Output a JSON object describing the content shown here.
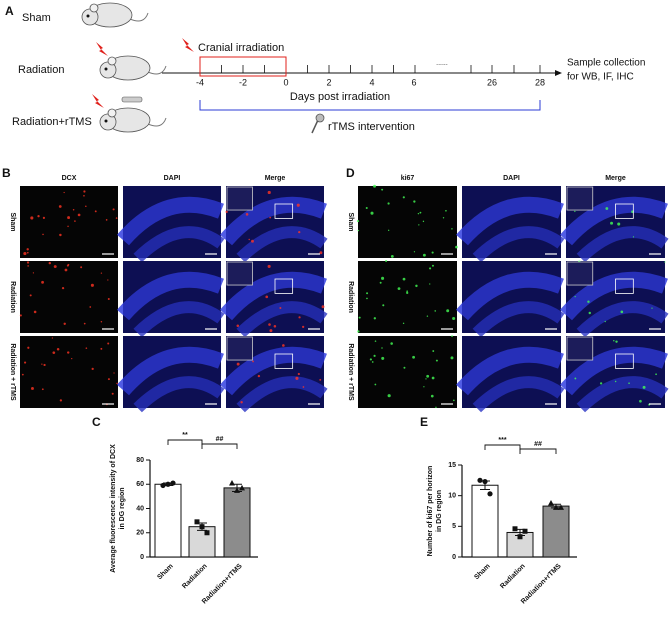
{
  "panels": {
    "a": "A",
    "b": "B",
    "c": "C",
    "d": "D",
    "e": "E"
  },
  "schematic": {
    "groups": [
      "Sham",
      "Radiation",
      "Radiation+rTMS"
    ],
    "irradiation": "Cranial irradiation",
    "days": [
      -4,
      -2,
      0,
      2,
      4,
      6,
      26,
      28
    ],
    "ellipsis": "......",
    "xlabel": "Days post irradiation",
    "intervention": "rTMS intervention",
    "endpoint": [
      "Sample collection",
      "for WB, IF, IHC"
    ]
  },
  "if_panel_b": {
    "columns": [
      "DCX",
      "DAPI",
      "Merge"
    ],
    "column_colors": [
      "#e0201b",
      "#2b3bd6",
      "#111111"
    ],
    "rows": [
      "Sham",
      "Radiation",
      "Radiation + rTMS"
    ]
  },
  "if_panel_d": {
    "columns": [
      "ki67",
      "DAPI",
      "Merge"
    ],
    "column_colors": [
      "#2aa63a",
      "#2b3bd6",
      "#111111"
    ],
    "rows": [
      "Sham",
      "Radiation",
      "Radiation + rTMS"
    ]
  },
  "chart_data": [
    {
      "type": "bar",
      "y_label": [
        "Average fluorescence intensity of DCX",
        "in DG region"
      ],
      "categories": [
        "Sham",
        "Radiation",
        "Radiation+rTMS"
      ],
      "values": [
        60,
        25,
        57
      ],
      "errors": [
        1,
        3,
        3
      ],
      "points": [
        [
          59,
          60,
          61
        ],
        [
          29,
          25,
          20
        ],
        [
          61,
          55,
          57
        ]
      ],
      "colors": [
        "#ffffff",
        "#d9d9d9",
        "#8c8c8c"
      ],
      "ylim": [
        0,
        80
      ],
      "yticks": [
        0,
        20,
        40,
        60,
        80
      ],
      "annotations": [
        "**",
        "##"
      ]
    },
    {
      "type": "bar",
      "y_label": [
        "Number of ki67 per horizon",
        "in DG region"
      ],
      "categories": [
        "Sham",
        "Radiation",
        "Radiation+rTMS"
      ],
      "values": [
        11.7,
        4.0,
        8.3
      ],
      "errors": [
        0.7,
        0.5,
        0.3
      ],
      "points": [
        [
          12.5,
          12.3,
          10.3
        ],
        [
          4.6,
          3.3,
          4.2
        ],
        [
          8.8,
          8.1,
          8.1
        ]
      ],
      "colors": [
        "#ffffff",
        "#d9d9d9",
        "#8c8c8c"
      ],
      "ylim": [
        0,
        15
      ],
      "yticks": [
        0,
        5,
        10,
        15
      ],
      "annotations": [
        "***",
        "##"
      ]
    }
  ]
}
